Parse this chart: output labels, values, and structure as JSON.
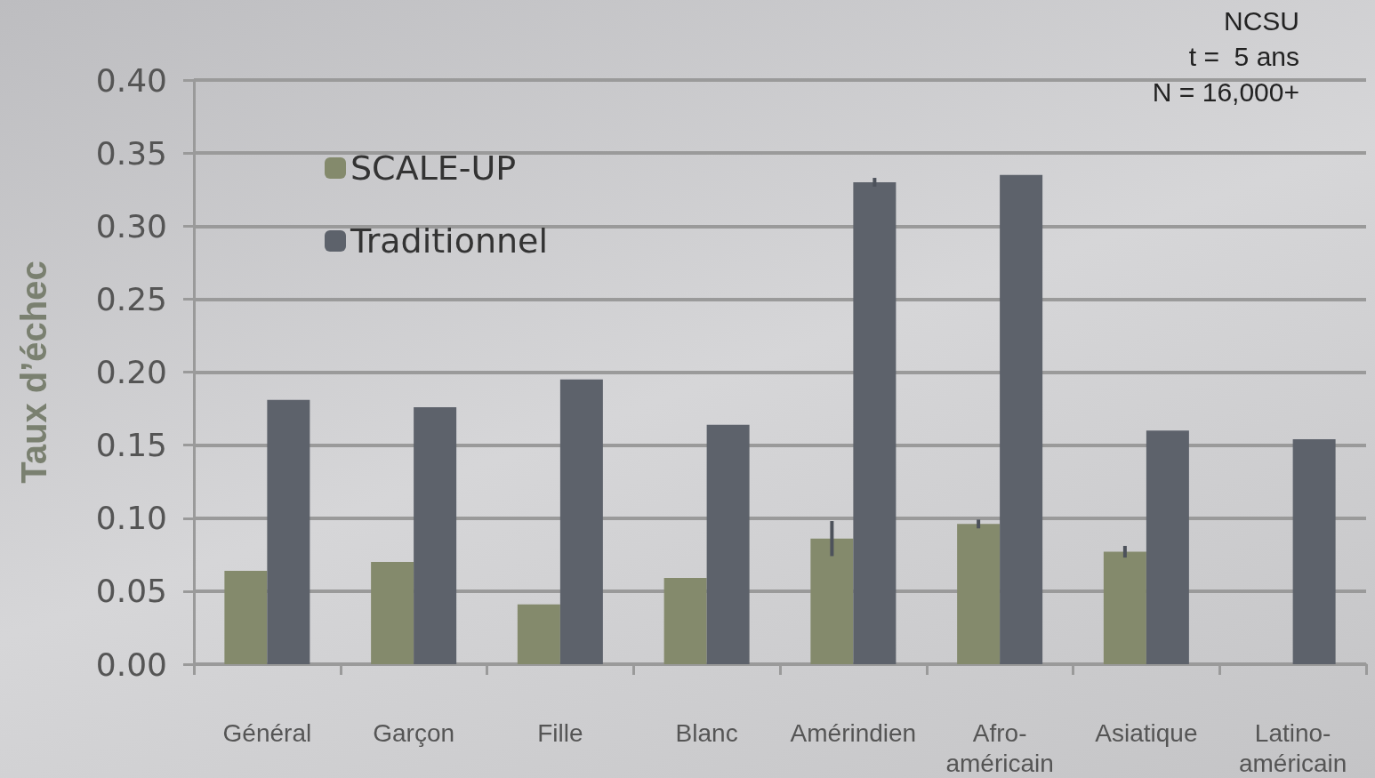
{
  "chart_data": {
    "type": "bar",
    "ylabel": "Taux d’échec",
    "categories": [
      "Général",
      "Garçon",
      "Fille",
      "Blanc",
      "Amérindien",
      "Afro-américain",
      "Asiatique",
      "Latino-américain"
    ],
    "series": [
      {
        "name": "SCALE-UP",
        "color": "#848a6c",
        "values": [
          0.064,
          0.07,
          0.041,
          0.059,
          0.086,
          0.096,
          0.077,
          null
        ],
        "errors": [
          null,
          null,
          null,
          null,
          0.012,
          0.003,
          0.004,
          null
        ]
      },
      {
        "name": "Traditionnel",
        "color": "#5d626b",
        "values": [
          0.181,
          0.176,
          0.195,
          0.164,
          0.33,
          0.335,
          0.16,
          0.154
        ],
        "errors": [
          null,
          null,
          null,
          null,
          0.003,
          null,
          null,
          null
        ]
      }
    ],
    "ylim": [
      0,
      0.4
    ],
    "yticks": [
      {
        "value": 0,
        "label": "0.00"
      },
      0.05,
      {
        "value": 0.1,
        "label": "0.10"
      },
      0.15,
      {
        "value": 0.2,
        "label": "0.20"
      },
      0.25,
      {
        "value": 0.3,
        "label": "0.30"
      },
      0.35,
      {
        "value": 0.4,
        "label": "0.40"
      }
    ],
    "grid": "y",
    "legend": "top left",
    "annotations": [
      "NCSU",
      "t =  5 ans",
      "N = 16,000+"
    ]
  }
}
